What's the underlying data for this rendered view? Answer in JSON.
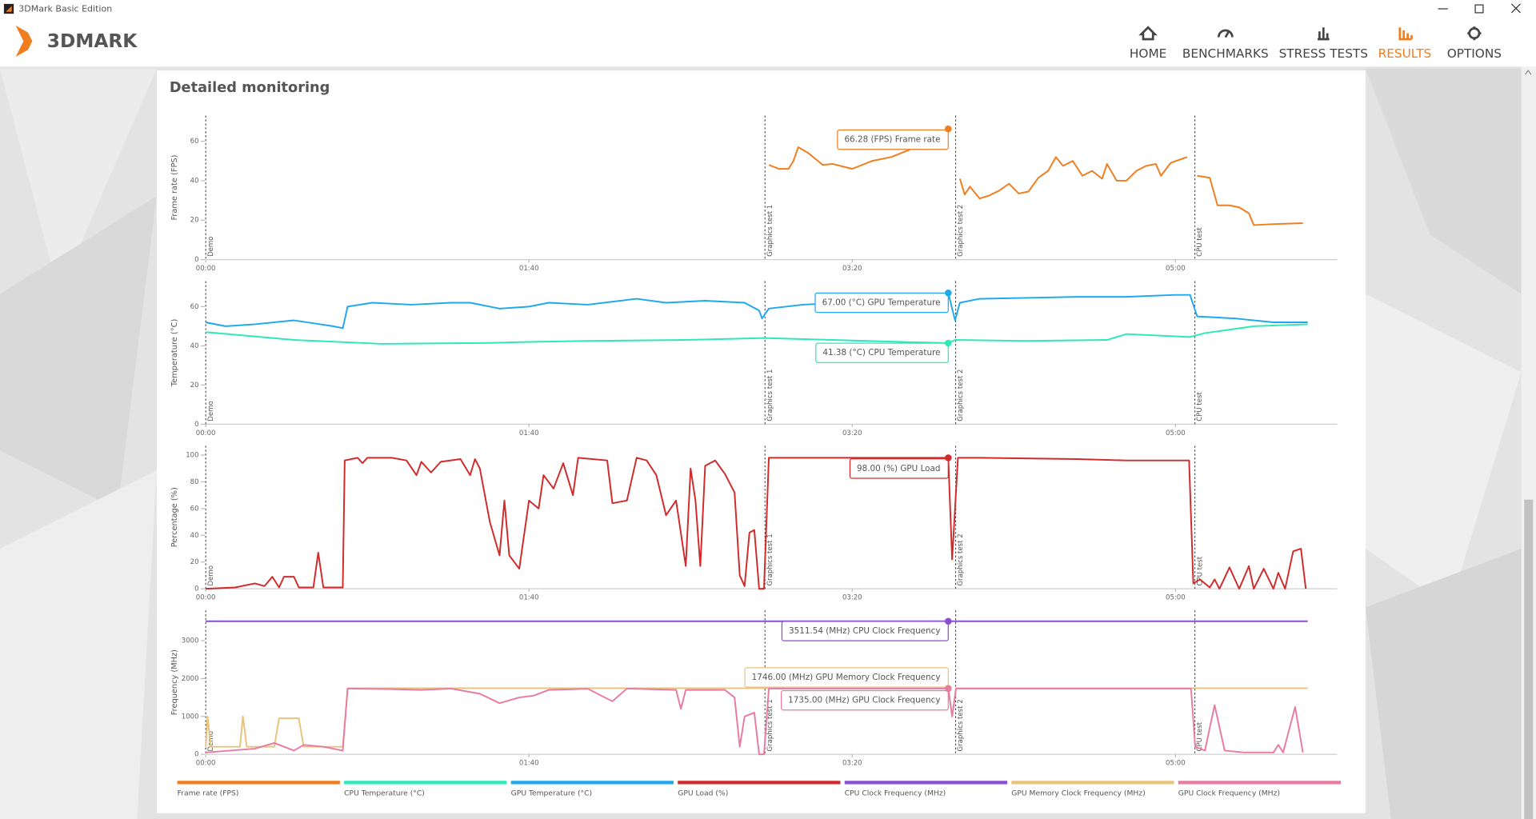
{
  "window": {
    "title": "3DMark Basic Edition"
  },
  "header": {
    "logo": "3DMARK",
    "nav": [
      {
        "label": "HOME",
        "active": false
      },
      {
        "label": "BENCHMARKS",
        "active": false
      },
      {
        "label": "STRESS TESTS",
        "active": false
      },
      {
        "label": "RESULTS",
        "active": true
      },
      {
        "label": "OPTIONS",
        "active": false
      }
    ]
  },
  "panel": {
    "title": "Detailed monitoring"
  },
  "test_markers": [
    {
      "time": 0,
      "label": "Demo"
    },
    {
      "time": 173,
      "label": "Graphics test 1"
    },
    {
      "time": 232,
      "label": "Graphics test 2"
    },
    {
      "time": 306,
      "label": "CPU test"
    }
  ],
  "legend": [
    {
      "name": "Frame rate (FPS)",
      "color": "#f07d1e"
    },
    {
      "name": "CPU Temperature (°C)",
      "color": "#2de8b9"
    },
    {
      "name": "GPU Temperature (°C)",
      "color": "#1fa8ef"
    },
    {
      "name": "GPU Load (%)",
      "color": "#d02a2a"
    },
    {
      "name": "CPU Clock Frequency (MHz)",
      "color": "#8a4ed2"
    },
    {
      "name": "GPU Memory Clock Frequency (MHz)",
      "color": "#e9c27c"
    },
    {
      "name": "GPU Clock Frequency (MHz)",
      "color": "#e87ba2"
    }
  ],
  "chart_data": [
    {
      "type": "line",
      "y_label": "Frame rate (FPS)",
      "xlim": [
        0,
        350
      ],
      "xticks": [
        {
          "value": 0,
          "label": "00:00"
        },
        {
          "value": 100,
          "label": "01:40"
        },
        {
          "value": 200,
          "label": "03:20"
        },
        {
          "value": 300,
          "label": "05:00"
        }
      ],
      "ylim": [
        0,
        73
      ],
      "yticks": [
        0,
        20,
        40,
        60
      ],
      "series": [
        {
          "name": "Frame rate (FPS)",
          "color": "#f07d1e",
          "x": [
            174.2,
            177.3,
            180.3,
            181.8,
            183.3,
            186.4,
            189.4,
            190.9,
            193.9,
            200,
            206.1,
            212.1,
            218.2,
            224.2,
            228.8,
            229.7,
            231,
            233.3,
            234.8,
            236.4,
            239.4,
            242.4,
            245.5,
            248.5,
            251.5,
            254.5,
            257.6,
            260.6,
            263,
            265.2,
            268.2,
            271.2,
            274.2,
            277.3,
            278.8,
            281.8,
            284.8,
            287.9,
            290.9,
            293.9,
            295.5,
            298.5,
            303.6,
            305,
            306.7,
            310.6,
            313,
            316.7,
            319.7,
            322.7,
            324.2,
            330.3,
            339.4
          ],
          "values": [
            48,
            46,
            46,
            50,
            57,
            54,
            50,
            48,
            48.5,
            46,
            50,
            52,
            56,
            56,
            58,
            66.28,
            null,
            41,
            33,
            37,
            31,
            32.5,
            35,
            38.5,
            33.5,
            34.5,
            41.5,
            45,
            52,
            47.5,
            50,
            42.5,
            45,
            41,
            48.5,
            40,
            40,
            45,
            47.5,
            48.5,
            42.5,
            49,
            52,
            null,
            42.5,
            41.5,
            27.5,
            27.5,
            26.5,
            23.5,
            17.5,
            18,
            18.5
          ]
        }
      ],
      "tooltips": [
        {
          "text": "66.28 (FPS) Frame rate",
          "x": 229.7,
          "value": 66.28,
          "color": "#f07d1e"
        }
      ]
    },
    {
      "type": "line",
      "y_label": "Temperature (°C)",
      "xlim": [
        0,
        350
      ],
      "xticks": [
        {
          "value": 0,
          "label": "00:00"
        },
        {
          "value": 100,
          "label": "01:40"
        },
        {
          "value": 200,
          "label": "03:20"
        },
        {
          "value": 300,
          "label": "05:00"
        }
      ],
      "ylim": [
        0,
        73
      ],
      "yticks": [
        0,
        20,
        40,
        60
      ],
      "series": [
        {
          "name": "GPU Temperature (°C)",
          "color": "#1fa8ef",
          "x": [
            0,
            6.1,
            15.2,
            27.3,
            39.4,
            42.4,
            43.9,
            51.5,
            63.6,
            75.8,
            81.8,
            90.9,
            100,
            106.1,
            118.2,
            133.3,
            142.4,
            154.5,
            166.7,
            171.2,
            172.1,
            174.2,
            184.8,
            197,
            209.1,
            221.2,
            229.7,
            231.8,
            233.3,
            239.4,
            269.7,
            284.8,
            300,
            304.5,
            306.7,
            318.2,
            330.3,
            340.9
          ],
          "values": [
            52,
            50,
            51,
            53,
            50,
            49,
            60,
            62,
            61,
            62,
            62,
            59,
            60,
            62,
            61,
            64,
            62,
            63,
            62,
            58,
            54,
            59,
            61,
            62,
            62,
            63,
            67,
            53,
            62,
            64,
            65,
            65,
            66,
            66,
            55,
            54,
            52,
            52
          ]
        },
        {
          "name": "CPU Temperature (°C)",
          "color": "#2de8b9",
          "x": [
            0,
            27.3,
            54.5,
            87.9,
            100,
            118.2,
            148.5,
            172.7,
            193.9,
            215.2,
            229.7,
            231.8,
            254.5,
            278.8,
            284.8,
            304.5,
            309.1,
            324.2,
            340.9
          ],
          "values": [
            47,
            43,
            41,
            41.5,
            42,
            42.5,
            43,
            44,
            43,
            42,
            41.38,
            43,
            42.5,
            43,
            46,
            44.5,
            46.5,
            50,
            51
          ]
        }
      ],
      "tooltips": [
        {
          "text": "67.00 (°C) GPU Temperature",
          "x": 229.7,
          "value": 67,
          "color": "#1fa8ef"
        },
        {
          "text": "41.38 (°C) CPU Temperature",
          "x": 229.7,
          "value": 41.38,
          "color": "#2de8b9"
        }
      ]
    },
    {
      "type": "line",
      "y_label": "Percentage (%)",
      "xlim": [
        0,
        350
      ],
      "xticks": [
        {
          "value": 0,
          "label": "00:00"
        },
        {
          "value": 100,
          "label": "01:40"
        },
        {
          "value": 200,
          "label": "03:20"
        },
        {
          "value": 300,
          "label": "05:00"
        }
      ],
      "ylim": [
        0,
        107
      ],
      "yticks": [
        0,
        20,
        40,
        60,
        80,
        100
      ],
      "series": [
        {
          "name": "GPU Load (%)",
          "color": "#d02a2a",
          "x": [
            0,
            9.1,
            15.2,
            18.2,
            20.6,
            22.7,
            24.2,
            27.3,
            28.8,
            33.3,
            34.8,
            36.4,
            42.4,
            43,
            47,
            48.5,
            50,
            57.6,
            62.1,
            65.2,
            66.7,
            69.7,
            72.7,
            78.8,
            81.8,
            83.3,
            84.8,
            87.9,
            90.9,
            92.4,
            93.9,
            97,
            100,
            103,
            104.5,
            107.6,
            110.6,
            113.6,
            115.2,
            124.2,
            125.8,
            130.3,
            133.3,
            136.4,
            139.4,
            142.4,
            145.5,
            148.5,
            150,
            151.5,
            153,
            154.5,
            157.6,
            160.6,
            163.6,
            165.2,
            166.7,
            168.2,
            169.7,
            171.2,
            172.7,
            174.2,
            229.7,
            230.9,
            232.7,
            239.4,
            269.7,
            284.8,
            304.2,
            305.5,
            307.6,
            310.6,
            312.1,
            313.6,
            316.7,
            319.7,
            322.7,
            324.2,
            327.3,
            330.3,
            331.8,
            333.9,
            336.4,
            338.8,
            340.3
          ],
          "values": [
            0,
            1,
            4,
            2,
            9,
            1,
            9,
            9,
            1,
            1,
            27,
            1,
            1,
            96,
            98,
            94,
            98,
            98,
            96,
            85,
            95,
            87,
            95,
            97,
            85,
            97,
            90,
            50,
            25,
            66,
            25,
            15,
            66,
            60,
            85,
            75,
            94,
            70,
            98,
            96,
            64,
            66,
            98,
            96,
            85,
            55,
            66,
            17,
            90,
            66,
            17,
            92,
            96,
            86,
            72,
            10,
            2,
            42,
            44,
            0,
            0,
            98,
            98,
            22,
            98,
            98,
            97,
            96,
            96,
            4,
            7,
            1,
            7,
            0,
            16,
            0,
            17,
            0,
            15,
            0,
            12,
            0,
            28,
            30,
            0
          ]
        }
      ],
      "tooltips": [
        {
          "text": "98.00 (%) GPU Load",
          "x": 229.7,
          "value": 98,
          "color": "#d02a2a"
        }
      ]
    },
    {
      "type": "line",
      "y_label": "Frequency (MHz)",
      "xlim": [
        0,
        350
      ],
      "xticks": [
        {
          "value": 0,
          "label": "00:00"
        },
        {
          "value": 100,
          "label": "01:40"
        },
        {
          "value": 200,
          "label": "03:20"
        },
        {
          "value": 300,
          "label": "05:00"
        }
      ],
      "ylim": [
        0,
        3800
      ],
      "yticks": [
        0,
        1000,
        2000,
        3000
      ],
      "series": [
        {
          "name": "CPU Clock Frequency (MHz)",
          "color": "#8a4ed2",
          "x": [
            0,
            229.7,
            340.9
          ],
          "values": [
            3511.54,
            3511.54,
            3511.54
          ]
        },
        {
          "name": "GPU Memory Clock Frequency (MHz)",
          "color": "#e9c27c",
          "x": [
            0,
            0.6,
            1.5,
            10.6,
            11.5,
            12.7,
            21.2,
            22.7,
            28.8,
            30.3,
            42.4,
            43.9,
            229.7,
            230.9,
            232.1,
            340.9
          ],
          "values": [
            200,
            1000,
            200,
            200,
            1000,
            200,
            200,
            950,
            950,
            200,
            200,
            1746,
            1746,
            1000,
            1746,
            1746
          ]
        },
        {
          "name": "GPU Clock Frequency (MHz)",
          "color": "#e87ba2",
          "x": [
            0,
            15.2,
            21.2,
            27.3,
            30.3,
            36.4,
            42.4,
            43.9,
            57.6,
            66.7,
            75.8,
            84.8,
            90.9,
            97,
            101.5,
            106.1,
            118.2,
            125.8,
            130.3,
            145.5,
            147,
            148.5,
            160.6,
            163.6,
            165.2,
            166.7,
            169.7,
            171.2,
            172.7,
            174.2,
            229.7,
            230.9,
            232.1,
            304.8,
            306.1,
            309.1,
            312.1,
            315.2,
            321.2,
            330.3,
            331.8,
            333.3,
            337,
            339.4
          ],
          "values": [
            50,
            150,
            300,
            100,
            250,
            200,
            100,
            1735,
            1720,
            1700,
            1735,
            1600,
            1350,
            1500,
            1550,
            1700,
            1730,
            1400,
            1735,
            1700,
            1200,
            1700,
            1700,
            1500,
            200,
            1000,
            1100,
            0,
            0,
            1735,
            1735,
            1000,
            1735,
            1735,
            200,
            100,
            1300,
            100,
            50,
            50,
            250,
            50,
            1250,
            50
          ]
        }
      ],
      "tooltips": [
        {
          "text": "3511.54 (MHz) CPU Clock Frequency",
          "x": 229.7,
          "value": 3511.54,
          "color": "#8a4ed2"
        },
        {
          "text": "1746.00 (MHz) GPU Memory Clock Frequency",
          "x": 229.7,
          "value": 1746,
          "color": "#e9c27c"
        },
        {
          "text": "1735.00 (MHz) GPU Clock Frequency",
          "x": 229.7,
          "value": 1735,
          "color": "#e87ba2"
        }
      ]
    }
  ]
}
